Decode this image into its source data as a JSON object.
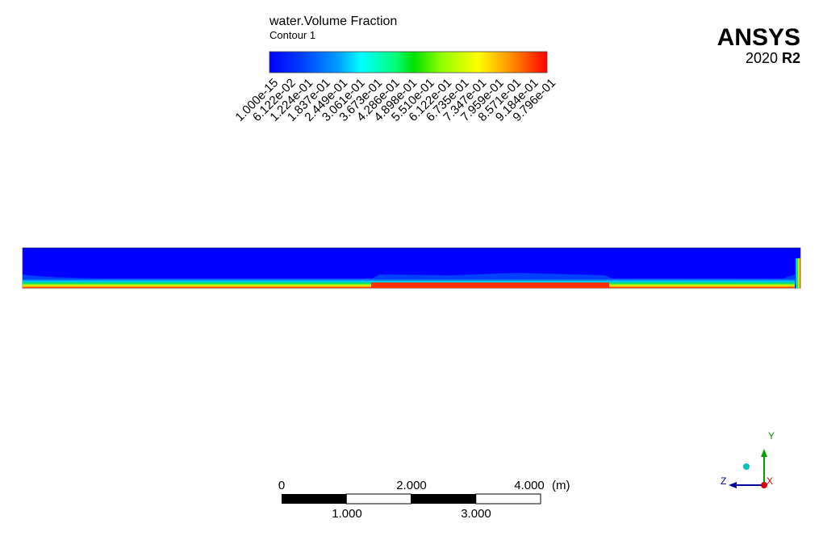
{
  "legend": {
    "title": "water.Volume Fraction",
    "subtitle": "Contour 1",
    "labels": [
      "1.000e-15",
      "6.122e-02",
      "1.224e-01",
      "1.837e-01",
      "2.449e-01",
      "3.061e-01",
      "3.673e-01",
      "4.286e-01",
      "4.898e-01",
      "5.510e-01",
      "6.122e-01",
      "6.735e-01",
      "7.347e-01",
      "7.959e-01",
      "8.571e-01",
      "9.184e-01",
      "9.796e-01"
    ]
  },
  "logo": {
    "name": "ANSYS",
    "version": "2020",
    "release": "R2"
  },
  "scale_bar": {
    "top_labels": [
      "0",
      "2.000",
      "4.000"
    ],
    "unit": "(m)",
    "bottom_labels": [
      "1.000",
      "3.000"
    ]
  },
  "triad": {
    "y": "Y",
    "z": "Z",
    "x": "X"
  }
}
